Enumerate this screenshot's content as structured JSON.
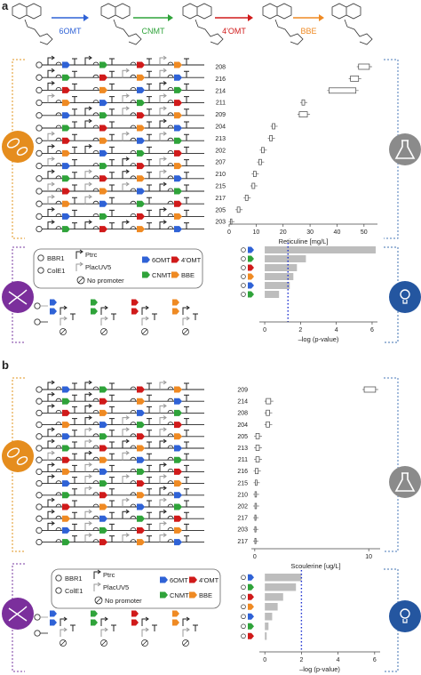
{
  "panels": {
    "a": {
      "label": "a",
      "enzymes": [
        "6OMT",
        "CNMT",
        "4'OMT",
        "BBE"
      ],
      "enzyme_colors": [
        "#2f62d6",
        "#2fa33a",
        "#d01a1a",
        "#ef8a23"
      ],
      "legend": {
        "origins": [
          "BBR1",
          "ColE1"
        ],
        "promoters": [
          "Ptrc",
          "PlacUV5"
        ],
        "none": "No promoter",
        "genes": [
          "6OMT",
          "4'OMT",
          "CNMT",
          "BBE"
        ]
      }
    },
    "b": {
      "label": "b",
      "legend": {
        "origins": [
          "BBR1",
          "ColE1"
        ],
        "promoters": [
          "Ptrc",
          "PlacUV5"
        ],
        "none": "No promoter",
        "genes": [
          "6OMT",
          "4'OMT",
          "CNMT",
          "BBE"
        ]
      }
    }
  },
  "chart_data": [
    {
      "type": "boxplot",
      "panel": "a",
      "xlabel": "Reticuline [mg/L]",
      "xlim": [
        0,
        55
      ],
      "xticks": [
        0,
        10,
        20,
        30,
        40,
        50
      ],
      "categories": [
        "208",
        "216",
        "214",
        "211",
        "209",
        "204",
        "213",
        "202",
        "207",
        "210",
        "215",
        "217",
        "205",
        "203"
      ],
      "values": [
        [
          48,
          52
        ],
        [
          45,
          48
        ],
        [
          37,
          47
        ],
        [
          27,
          28
        ],
        [
          26,
          29
        ],
        [
          16,
          17
        ],
        [
          15,
          16
        ],
        [
          12,
          13
        ],
        [
          11,
          12
        ],
        [
          9,
          10
        ],
        [
          8.5,
          9.5
        ],
        [
          6,
          7
        ],
        [
          3,
          4
        ],
        [
          0.5,
          1
        ]
      ]
    },
    {
      "type": "bar",
      "panel": "a",
      "xlabel": "–log (p-value)",
      "xlim": [
        -0.3,
        6.3
      ],
      "xticks": [
        0,
        2,
        4,
        6
      ],
      "values": [
        6.2,
        2.3,
        1.8,
        1.6,
        1.4,
        0.8
      ],
      "threshold": 1.3
    },
    {
      "type": "boxplot",
      "panel": "b",
      "xlabel": "Scoulerine [ug/L]",
      "xlim": [
        -0.3,
        11
      ],
      "xticks": [
        0,
        10
      ],
      "categories": [
        "209",
        "214",
        "208",
        "204",
        "205",
        "213",
        "211",
        "216",
        "215",
        "210",
        "202",
        "217",
        "203",
        "217"
      ],
      "values": [
        [
          9.6,
          10.6
        ],
        [
          1.0,
          1.4
        ],
        [
          1.0,
          1.3
        ],
        [
          1.0,
          1.3
        ],
        [
          0.1,
          0.4
        ],
        [
          0.1,
          0.4
        ],
        [
          0.1,
          0.4
        ],
        [
          0.05,
          0.3
        ],
        [
          0.05,
          0.2
        ],
        [
          0.02,
          0.15
        ],
        [
          0.02,
          0.15
        ],
        [
          0.01,
          0.1
        ],
        [
          0.01,
          0.08
        ],
        [
          0.01,
          0.08
        ]
      ]
    },
    {
      "type": "bar",
      "panel": "b",
      "xlabel": "–log (p-value)",
      "xlim": [
        -0.3,
        6.3
      ],
      "xticks": [
        0,
        2,
        4,
        6
      ],
      "values": [
        2.0,
        1.7,
        1.0,
        0.7,
        0.4,
        0.2,
        0.1
      ],
      "threshold": 2.0
    }
  ]
}
